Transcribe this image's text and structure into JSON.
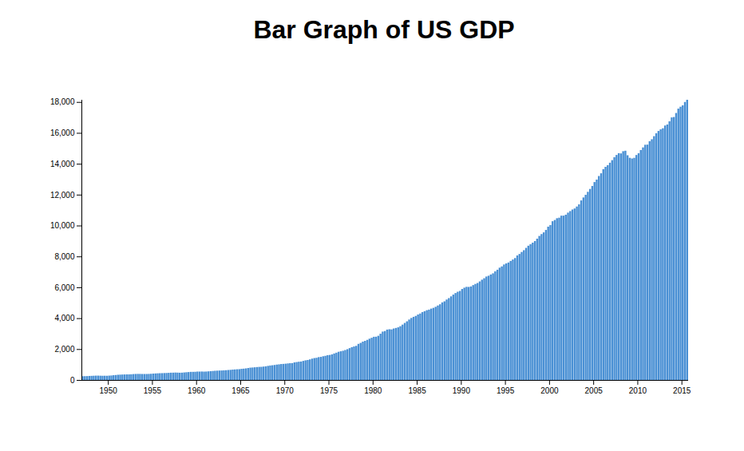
{
  "chart_data": {
    "type": "bar",
    "title": "Bar Graph of US GDP",
    "color": "#4a90d4",
    "x": [
      1947,
      1947.25,
      1947.5,
      1947.75,
      1948,
      1948.25,
      1948.5,
      1948.75,
      1949,
      1949.25,
      1949.5,
      1949.75,
      1950,
      1950.25,
      1950.5,
      1950.75,
      1951,
      1951.25,
      1951.5,
      1951.75,
      1952,
      1952.25,
      1952.5,
      1952.75,
      1953,
      1953.25,
      1953.5,
      1953.75,
      1954,
      1954.25,
      1954.5,
      1954.75,
      1955,
      1955.25,
      1955.5,
      1955.75,
      1956,
      1956.25,
      1956.5,
      1956.75,
      1957,
      1957.25,
      1957.5,
      1957.75,
      1958,
      1958.25,
      1958.5,
      1958.75,
      1959,
      1959.25,
      1959.5,
      1959.75,
      1960,
      1960.25,
      1960.5,
      1960.75,
      1961,
      1961.25,
      1961.5,
      1961.75,
      1962,
      1962.25,
      1962.5,
      1962.75,
      1963,
      1963.25,
      1963.5,
      1963.75,
      1964,
      1964.25,
      1964.5,
      1964.75,
      1965,
      1965.25,
      1965.5,
      1965.75,
      1966,
      1966.25,
      1966.5,
      1966.75,
      1967,
      1967.25,
      1967.5,
      1967.75,
      1968,
      1968.25,
      1968.5,
      1968.75,
      1969,
      1969.25,
      1969.5,
      1969.75,
      1970,
      1970.25,
      1970.5,
      1970.75,
      1971,
      1971.25,
      1971.5,
      1971.75,
      1972,
      1972.25,
      1972.5,
      1972.75,
      1973,
      1973.25,
      1973.5,
      1973.75,
      1974,
      1974.25,
      1974.5,
      1974.75,
      1975,
      1975.25,
      1975.5,
      1975.75,
      1976,
      1976.25,
      1976.5,
      1976.75,
      1977,
      1977.25,
      1977.5,
      1977.75,
      1978,
      1978.25,
      1978.5,
      1978.75,
      1979,
      1979.25,
      1979.5,
      1979.75,
      1980,
      1980.25,
      1980.5,
      1980.75,
      1981,
      1981.25,
      1981.5,
      1981.75,
      1982,
      1982.25,
      1982.5,
      1982.75,
      1983,
      1983.25,
      1983.5,
      1983.75,
      1984,
      1984.25,
      1984.5,
      1984.75,
      1985,
      1985.25,
      1985.5,
      1985.75,
      1986,
      1986.25,
      1986.5,
      1986.75,
      1987,
      1987.25,
      1987.5,
      1987.75,
      1988,
      1988.25,
      1988.5,
      1988.75,
      1989,
      1989.25,
      1989.5,
      1989.75,
      1990,
      1990.25,
      1990.5,
      1990.75,
      1991,
      1991.25,
      1991.5,
      1991.75,
      1992,
      1992.25,
      1992.5,
      1992.75,
      1993,
      1993.25,
      1993.5,
      1993.75,
      1994,
      1994.25,
      1994.5,
      1994.75,
      1995,
      1995.25,
      1995.5,
      1995.75,
      1996,
      1996.25,
      1996.5,
      1996.75,
      1997,
      1997.25,
      1997.5,
      1997.75,
      1998,
      1998.25,
      1998.5,
      1998.75,
      1999,
      1999.25,
      1999.5,
      1999.75,
      2000,
      2000.25,
      2000.5,
      2000.75,
      2001,
      2001.25,
      2001.5,
      2001.75,
      2002,
      2002.25,
      2002.5,
      2002.75,
      2003,
      2003.25,
      2003.5,
      2003.75,
      2004,
      2004.25,
      2004.5,
      2004.75,
      2005,
      2005.25,
      2005.5,
      2005.75,
      2006,
      2006.25,
      2006.5,
      2006.75,
      2007,
      2007.25,
      2007.5,
      2007.75,
      2008,
      2008.25,
      2008.5,
      2008.75,
      2009,
      2009.25,
      2009.5,
      2009.75,
      2010,
      2010.25,
      2010.5,
      2010.75,
      2011,
      2011.25,
      2011.5,
      2011.75,
      2012,
      2012.25,
      2012.5,
      2012.75,
      2013,
      2013.25,
      2013.5,
      2013.75,
      2014,
      2014.25,
      2014.5,
      2014.75,
      2015,
      2015.25,
      2015.5
    ],
    "values": [
      243.1,
      246.3,
      250.1,
      260.3,
      266.2,
      272.9,
      279.5,
      280.7,
      275.4,
      271.7,
      273.3,
      271.0,
      281.2,
      290.7,
      308.5,
      320.3,
      336.4,
      344.5,
      351.8,
      356.6,
      360.2,
      361.4,
      368.1,
      381.2,
      388.5,
      392.3,
      391.7,
      386.5,
      385.9,
      386.7,
      391.6,
      400.3,
      413.8,
      422.2,
      430.9,
      437.8,
      440.5,
      446.8,
      452.0,
      461.3,
      470.6,
      472.8,
      480.3,
      475.7,
      468.4,
      472.8,
      486.7,
      500.4,
      511.1,
      524.2,
      525.2,
      529.3,
      543.3,
      542.7,
      546.0,
      541.1,
      545.9,
      557.4,
      568.2,
      581.6,
      595.2,
      602.6,
      609.6,
      613.1,
      622.7,
      631.8,
      645.0,
      654.8,
      671.1,
      680.8,
      692.8,
      698.4,
      719.2,
      732.4,
      750.2,
      773.1,
      797.3,
      807.2,
      820.8,
      834.9,
      846.0,
      851.1,
      866.6,
      883.2,
      911.1,
      936.3,
      952.3,
      970.1,
      995.4,
      1011.4,
      1032.0,
      1040.7,
      1053.5,
      1070.1,
      1088.5,
      1091.5,
      1137.8,
      1159.4,
      1180.3,
      1193.6,
      1233.8,
      1270.1,
      1293.8,
      1332.0,
      1380.7,
      1417.6,
      1436.8,
      1479.1,
      1494.7,
      1534.2,
      1563.4,
      1603.0,
      1619.6,
      1656.4,
      1713.8,
      1765.9,
      1824.5,
      1856.9,
      1890.5,
      1938.4,
      1992.5,
      2060.2,
      2122.4,
      2168.7,
      2208.7,
      2336.6,
      2398.9,
      2482.2,
      2531.6,
      2595.9,
      2670.4,
      2730.7,
      2796.5,
      2799.9,
      2860.0,
      2993.5,
      3131.8,
      3167.3,
      3261.2,
      3283.5,
      3273.8,
      3331.3,
      3367.1,
      3407.8,
      3480.3,
      3583.8,
      3692.3,
      3796.1,
      3912.8,
      4015.0,
      4087.4,
      4147.6,
      4237.0,
      4302.3,
      4394.6,
      4453.1,
      4516.3,
      4555.2,
      4619.6,
      4669.4,
      4736.2,
      4821.5,
      4900.5,
      5022.7,
      5090.6,
      5207.7,
      5299.5,
      5412.7,
      5527.4,
      5628.4,
      5711.6,
      5763.4,
      5890.8,
      5974.7,
      6029.5,
      6023.3,
      6054.9,
      6143.6,
      6218.4,
      6279.3,
      6380.8,
      6492.3,
      6586.5,
      6697.6,
      6748.2,
      6829.6,
      6904.2,
      7032.8,
      7136.3,
      7269.8,
      7352.3,
      7476.7,
      7545.3,
      7604.9,
      7706.5,
      7799.5,
      7893.1,
      8061.5,
      8159.0,
      8287.1,
      8402.1,
      8551.9,
      8691.8,
      8788.3,
      8889.7,
      8994.7,
      9146.5,
      9325.7,
      9447.1,
      9557.0,
      9712.3,
      9926.1,
      10031.0,
      10278.3,
      10357.4,
      10472.3,
      10508.1,
      10638.4,
      10639.5,
      10701.3,
      10834.4,
      10934.8,
      11037.1,
      11103.8,
      11230.1,
      11370.7,
      11625.1,
      11816.8,
      11988.4,
      12181.4,
      12367.7,
      12562.2,
      12813.7,
      12974.1,
      13205.4,
      13381.6,
      13648.9,
      13799.8,
      13908.5,
      14066.4,
      14233.2,
      14422.3,
      14569.7,
      14685.3,
      14668.4,
      14813.0,
      14843.0,
      14549.9,
      14383.9,
      14340.4,
      14384.1,
      14566.5,
      14681.1,
      14888.6,
      15057.7,
      15230.2,
      15238.4,
      15460.9,
      15587.1,
      15785.3,
      15973.9,
      16121.9,
      16227.9,
      16297.3,
      16475.4,
      16541.4,
      16749.3,
      16999.9,
      17025.2,
      17285.6,
      17569.4,
      17692.2,
      17783.6,
      17998.3,
      18141.9
    ],
    "xlim": [
      1947,
      2015.75
    ],
    "ylim": [
      0,
      18141.9
    ],
    "xticks": [
      1950,
      1955,
      1960,
      1965,
      1970,
      1975,
      1980,
      1985,
      1990,
      1995,
      2000,
      2005,
      2010,
      2015
    ],
    "yticks": [
      0,
      {
        "value": 2000,
        "label": "2,000"
      },
      {
        "value": 4000,
        "label": "4,000"
      },
      {
        "value": 6000,
        "label": "6,000"
      },
      {
        "value": 8000,
        "label": "8,000"
      },
      {
        "value": 10000,
        "label": "10,000"
      },
      {
        "value": 12000,
        "label": "12,000"
      },
      {
        "value": 14000,
        "label": "14,000"
      },
      {
        "value": 16000,
        "label": "16,000"
      },
      {
        "value": 18000,
        "label": "18,000"
      }
    ]
  }
}
